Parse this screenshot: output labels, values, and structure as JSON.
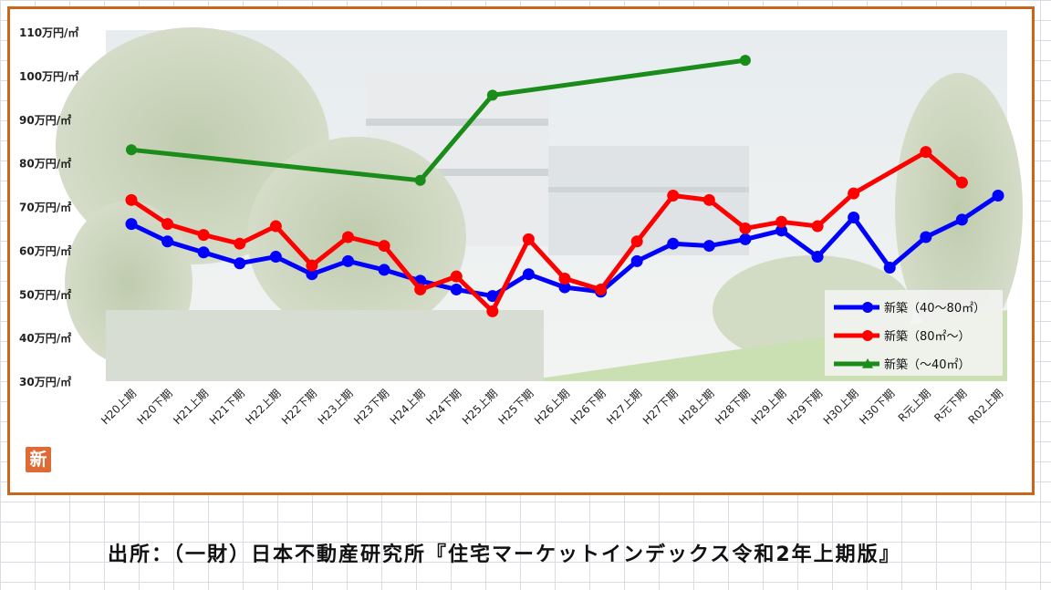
{
  "badge_text": "新",
  "source_text": "出所：（一財）日本不動産研究所『住宅マーケットインデックス令和2年上期版』",
  "chart_data": {
    "type": "line",
    "title": "",
    "xlabel": "",
    "ylabel": "",
    "ylim": [
      30,
      110
    ],
    "y_tick_values": [
      30,
      40,
      50,
      60,
      70,
      80,
      90,
      100,
      110
    ],
    "y_tick_suffix": "万円/㎡",
    "grid": false,
    "legend_position": "bottom-right",
    "categories": [
      "H20上期",
      "H20下期",
      "H21上期",
      "H21下期",
      "H22上期",
      "H22下期",
      "H23上期",
      "H23下期",
      "H24上期",
      "H24下期",
      "H25上期",
      "H25下期",
      "H26上期",
      "H26下期",
      "H27上期",
      "H27下期",
      "H28上期",
      "H28下期",
      "H29上期",
      "H29下期",
      "H30上期",
      "H30下期",
      "R元上期",
      "R元下期",
      "R02上期"
    ],
    "series": [
      {
        "name": "新築（40～80㎡）",
        "color": "#0000ff",
        "marker": "circle",
        "values": [
          66,
          62,
          59.5,
          57,
          58.5,
          54.5,
          57.5,
          55.5,
          53,
          51,
          49.5,
          54.5,
          51.5,
          50.5,
          57.5,
          61.5,
          61,
          62.5,
          64.5,
          58.5,
          67.5,
          56,
          63,
          67,
          72.5
        ]
      },
      {
        "name": "新築（80㎡～）",
        "color": "#ff0000",
        "marker": "circle",
        "values": [
          71.5,
          66,
          63.5,
          61.5,
          65.5,
          56.5,
          63,
          61,
          51,
          54,
          46,
          62.5,
          53.5,
          51,
          62,
          72.5,
          71.5,
          65,
          66.5,
          65.5,
          73,
          null,
          82.5,
          75.5,
          null
        ]
      },
      {
        "name": "新築（～40㎡）",
        "color": "#1a8c1a",
        "marker": "triangle",
        "values": [
          83,
          null,
          null,
          null,
          null,
          null,
          null,
          null,
          76,
          null,
          95.5,
          null,
          null,
          null,
          null,
          null,
          null,
          103.5,
          null,
          null,
          null,
          null,
          null,
          null,
          null
        ]
      }
    ]
  }
}
